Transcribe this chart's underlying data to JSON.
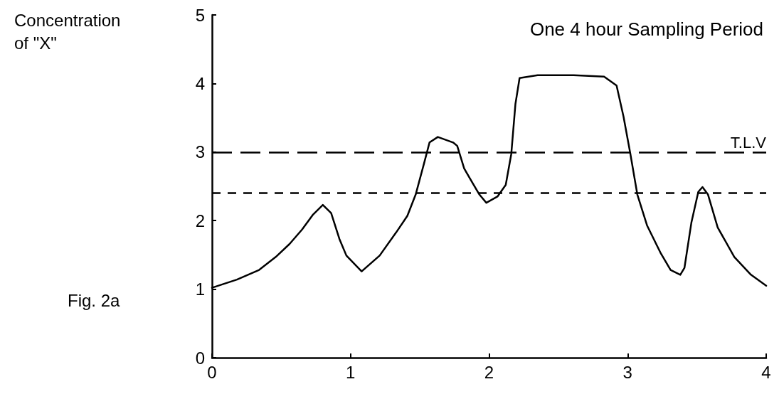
{
  "chart_data": {
    "type": "line",
    "title": "One 4 hour Sampling Period",
    "ylabel": "Concentration\nof \"X\"",
    "annotations": [
      "Fig. 2a"
    ],
    "x": [
      0,
      0.18,
      0.34,
      0.46,
      0.56,
      0.65,
      0.73,
      0.8,
      0.86,
      0.92,
      0.97,
      1.08,
      1.21,
      1.33,
      1.41,
      1.47,
      1.53,
      1.57,
      1.63,
      1.74,
      1.77,
      1.82,
      1.86,
      1.93,
      1.98,
      2.06,
      2.12,
      2.16,
      2.19,
      2.22,
      2.35,
      2.61,
      2.83,
      2.92,
      2.97,
      3.02,
      3.07,
      3.14,
      3.24,
      3.31,
      3.38,
      3.41,
      3.46,
      3.51,
      3.54,
      3.58,
      3.65,
      3.77,
      3.89,
      4
    ],
    "series": [
      {
        "color": "#000000",
        "values": [
          1.02,
          1.14,
          1.28,
          1.47,
          1.66,
          1.87,
          2.09,
          2.23,
          2.11,
          1.73,
          1.49,
          1.26,
          1.49,
          1.83,
          2.07,
          2.38,
          2.83,
          3.14,
          3.22,
          3.14,
          3.09,
          2.76,
          2.62,
          2.38,
          2.26,
          2.35,
          2.52,
          2.97,
          3.7,
          4.08,
          4.12,
          4.12,
          4.1,
          3.97,
          3.52,
          2.97,
          2.38,
          1.93,
          1.52,
          1.28,
          1.21,
          1.31,
          1.97,
          2.42,
          2.49,
          2.38,
          1.9,
          1.47,
          1.21,
          1.05
        ]
      }
    ],
    "xlim": [
      0,
      4
    ],
    "xticks": [
      0,
      1,
      2,
      3,
      4
    ],
    "ylim": [
      0,
      5
    ],
    "yticks": [
      0,
      1,
      2,
      3,
      4,
      5
    ],
    "grid": false,
    "marker": "none",
    "line_style": "solid",
    "ref_lines": [
      {
        "axis": "y",
        "value": 3,
        "label": "T.L.V",
        "color": "#000000",
        "line_style": "dashed"
      },
      {
        "axis": "y",
        "value": 2.4,
        "color": "#000000",
        "line_style": "dotted"
      }
    ]
  }
}
